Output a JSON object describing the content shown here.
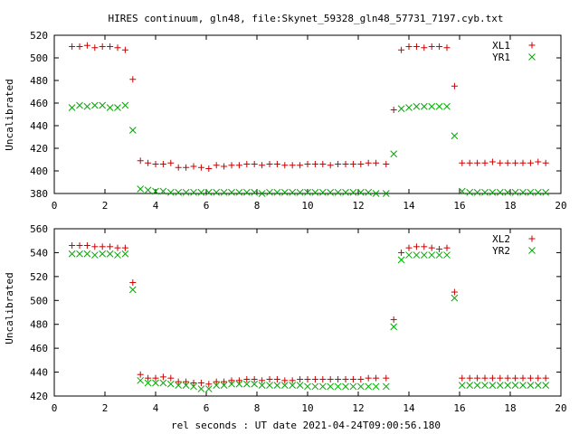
{
  "title": "HIRES continuum, gln48, file:Skynet_59328_gln48_57731_7197.cyb.txt",
  "xlabel": "rel seconds : UT date 2021-04-24T09:00:56.180",
  "colors": {
    "series_a": "#cc0000",
    "series_b": "#00aa00",
    "frame": "#000000"
  },
  "chart_data": [
    {
      "type": "scatter",
      "ylabel": "Uncalibrated",
      "xlim": [
        0,
        20
      ],
      "ylim": [
        380,
        520
      ],
      "xticks": [
        0,
        2,
        4,
        6,
        8,
        10,
        12,
        14,
        16,
        18,
        20
      ],
      "yticks": [
        380,
        400,
        420,
        440,
        460,
        480,
        500,
        520
      ],
      "legend_position": "top-right",
      "x": [
        0.7,
        1.0,
        1.3,
        1.6,
        1.9,
        2.2,
        2.5,
        2.8,
        3.1,
        3.4,
        3.7,
        4.0,
        4.3,
        4.6,
        4.9,
        5.2,
        5.5,
        5.8,
        6.1,
        6.4,
        6.7,
        7.0,
        7.3,
        7.6,
        7.9,
        8.2,
        8.5,
        8.8,
        9.1,
        9.4,
        9.7,
        10.0,
        10.3,
        10.6,
        10.9,
        11.2,
        11.5,
        11.8,
        12.1,
        12.4,
        12.7,
        13.1,
        13.4,
        13.7,
        14.0,
        14.3,
        14.6,
        14.9,
        15.2,
        15.5,
        15.8,
        16.1,
        16.4,
        16.7,
        17.0,
        17.3,
        17.6,
        17.9,
        18.2,
        18.5,
        18.8,
        19.1,
        19.4
      ],
      "series": [
        {
          "name": "XL1",
          "marker": "plus",
          "values": [
            510,
            510,
            511,
            509,
            510,
            510,
            509,
            507,
            481,
            409,
            407,
            406,
            406,
            407,
            403,
            403,
            404,
            403,
            402,
            405,
            404,
            405,
            405,
            406,
            406,
            405,
            406,
            406,
            405,
            405,
            405,
            406,
            406,
            406,
            405,
            406,
            406,
            406,
            406,
            407,
            407,
            406,
            454,
            507,
            510,
            510,
            509,
            510,
            510,
            509,
            475,
            407,
            407,
            407,
            407,
            408,
            407,
            407,
            407,
            407,
            407,
            408,
            407
          ]
        },
        {
          "name": "YR1",
          "marker": "cross",
          "values": [
            456,
            458,
            457,
            458,
            458,
            456,
            456,
            458,
            436,
            384,
            383,
            382,
            382,
            381,
            381,
            381,
            381,
            381,
            381,
            381,
            381,
            381,
            381,
            381,
            381,
            380,
            381,
            381,
            381,
            381,
            381,
            381,
            381,
            381,
            381,
            381,
            381,
            381,
            381,
            381,
            380,
            380,
            415,
            455,
            456,
            457,
            457,
            457,
            457,
            457,
            431,
            382,
            381,
            381,
            381,
            381,
            381,
            381,
            381,
            381,
            381,
            381,
            381
          ]
        }
      ]
    },
    {
      "type": "scatter",
      "ylabel": "Uncalibrated",
      "xlim": [
        0,
        20
      ],
      "ylim": [
        420,
        560
      ],
      "xticks": [
        0,
        2,
        4,
        6,
        8,
        10,
        12,
        14,
        16,
        18,
        20
      ],
      "yticks": [
        420,
        440,
        460,
        480,
        500,
        520,
        540,
        560
      ],
      "legend_position": "top-right",
      "x": [
        0.7,
        1.0,
        1.3,
        1.6,
        1.9,
        2.2,
        2.5,
        2.8,
        3.1,
        3.4,
        3.7,
        4.0,
        4.3,
        4.6,
        4.9,
        5.2,
        5.5,
        5.8,
        6.1,
        6.4,
        6.7,
        7.0,
        7.3,
        7.6,
        7.9,
        8.2,
        8.5,
        8.8,
        9.1,
        9.4,
        9.7,
        10.0,
        10.3,
        10.6,
        10.9,
        11.2,
        11.5,
        11.8,
        12.1,
        12.4,
        12.7,
        13.1,
        13.4,
        13.7,
        14.0,
        14.3,
        14.6,
        14.9,
        15.2,
        15.5,
        15.8,
        16.1,
        16.4,
        16.7,
        17.0,
        17.3,
        17.6,
        17.9,
        18.2,
        18.5,
        18.8,
        19.1,
        19.4
      ],
      "series": [
        {
          "name": "XL2",
          "marker": "plus",
          "values": [
            546,
            546,
            546,
            545,
            545,
            545,
            544,
            544,
            515,
            438,
            435,
            435,
            436,
            435,
            432,
            432,
            431,
            431,
            430,
            432,
            432,
            433,
            433,
            434,
            434,
            433,
            434,
            434,
            433,
            433,
            434,
            434,
            434,
            434,
            434,
            434,
            434,
            434,
            434,
            435,
            435,
            435,
            484,
            540,
            544,
            545,
            545,
            544,
            543,
            544,
            507,
            435,
            435,
            435,
            435,
            435,
            435,
            435,
            435,
            435,
            435,
            435,
            435
          ]
        },
        {
          "name": "YR2",
          "marker": "cross",
          "values": [
            539,
            539,
            539,
            538,
            539,
            539,
            538,
            539,
            509,
            433,
            431,
            431,
            431,
            430,
            429,
            429,
            428,
            426,
            426,
            429,
            429,
            430,
            430,
            430,
            430,
            429,
            429,
            429,
            429,
            429,
            429,
            428,
            428,
            428,
            428,
            428,
            428,
            428,
            428,
            428,
            428,
            428,
            478,
            534,
            538,
            538,
            538,
            538,
            538,
            538,
            502,
            429,
            429,
            429,
            429,
            429,
            429,
            429,
            429,
            429,
            429,
            429,
            429
          ]
        }
      ]
    }
  ]
}
